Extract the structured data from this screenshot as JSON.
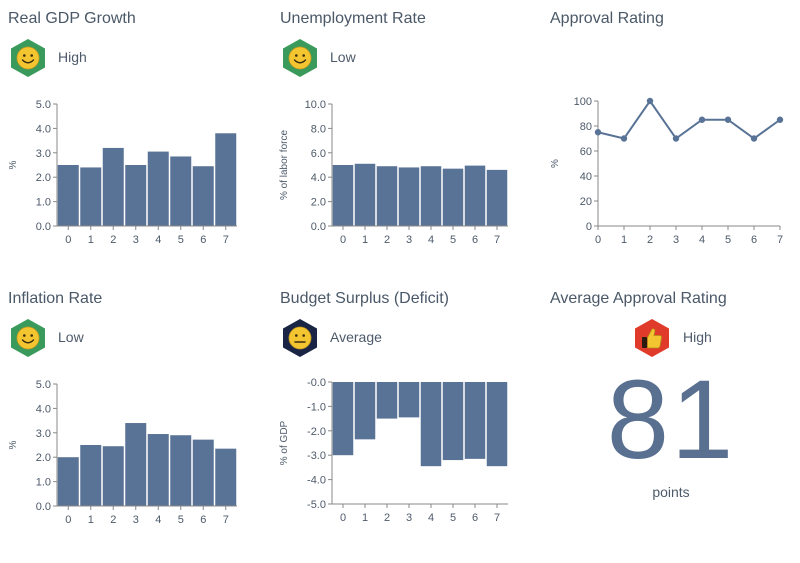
{
  "colors": {
    "bar": "#597396",
    "axis": "#888888",
    "text": "#4d5a6a",
    "green": "#3a9a5c",
    "navy": "#1a2546",
    "red": "#e03a2a",
    "face": "#f2c531"
  },
  "panels": [
    {
      "title": "Real GDP Growth",
      "badge": {
        "icon": "smiley-face-icon",
        "label": "High"
      }
    },
    {
      "title": "Unemployment Rate",
      "badge": {
        "icon": "smiley-face-icon",
        "label": "Low"
      }
    },
    {
      "title": "Approval Rating"
    },
    {
      "title": "Inflation Rate",
      "badge": {
        "icon": "smiley-face-icon",
        "label": "Low"
      }
    },
    {
      "title": "Budget Surplus (Deficit)",
      "badge": {
        "icon": "neutral-face-icon",
        "label": "Average"
      }
    },
    {
      "title": "Average Approval Rating",
      "badge": {
        "icon": "thumbs-up-icon",
        "label": "High"
      },
      "value": "81",
      "units": "points"
    }
  ],
  "chart_data": [
    {
      "type": "bar",
      "title": "Real GDP Growth",
      "ylabel": "%",
      "categories": [
        "0",
        "1",
        "2",
        "3",
        "4",
        "5",
        "6",
        "7"
      ],
      "values": [
        2.5,
        2.4,
        3.2,
        2.5,
        3.05,
        2.85,
        2.45,
        3.8
      ],
      "ylim": [
        0,
        5
      ],
      "yticks": [
        0,
        1,
        2,
        3,
        4,
        5
      ],
      "ytick_labels": [
        "0.0",
        "1.0",
        "2.0",
        "3.0",
        "4.0",
        "5.0"
      ]
    },
    {
      "type": "bar",
      "title": "Unemployment Rate",
      "ylabel": "% of labor force",
      "categories": [
        "0",
        "1",
        "2",
        "3",
        "4",
        "5",
        "6",
        "7"
      ],
      "values": [
        5.0,
        5.1,
        4.9,
        4.8,
        4.9,
        4.7,
        4.95,
        4.6
      ],
      "ylim": [
        0,
        10
      ],
      "yticks": [
        0,
        2,
        4,
        6,
        8,
        10
      ],
      "ytick_labels": [
        "0.0",
        "2.0",
        "4.0",
        "6.0",
        "8.0",
        "10.0"
      ]
    },
    {
      "type": "line",
      "title": "Approval Rating",
      "ylabel": "%",
      "x": [
        "0",
        "1",
        "2",
        "3",
        "4",
        "5",
        "6",
        "7"
      ],
      "values": [
        75,
        70,
        100,
        70,
        85,
        85,
        70,
        85
      ],
      "ylim": [
        0,
        100
      ],
      "yticks": [
        0,
        20,
        40,
        60,
        80,
        100
      ],
      "ytick_labels": [
        "0",
        "20",
        "40",
        "60",
        "80",
        "100"
      ]
    },
    {
      "type": "bar",
      "title": "Inflation Rate",
      "ylabel": "%",
      "categories": [
        "0",
        "1",
        "2",
        "3",
        "4",
        "5",
        "6",
        "7"
      ],
      "values": [
        2.0,
        2.5,
        2.45,
        3.4,
        2.95,
        2.9,
        2.72,
        2.35
      ],
      "ylim": [
        0,
        5
      ],
      "yticks": [
        0,
        1,
        2,
        3,
        4,
        5
      ],
      "ytick_labels": [
        "0.0",
        "1.0",
        "2.0",
        "3.0",
        "4.0",
        "5.0"
      ]
    },
    {
      "type": "bar",
      "title": "Budget Surplus (Deficit)",
      "ylabel": "% of GDP",
      "categories": [
        "0",
        "1",
        "2",
        "3",
        "4",
        "5",
        "6",
        "7"
      ],
      "values": [
        -3.0,
        -2.35,
        -1.5,
        -1.45,
        -3.45,
        -3.2,
        -3.15,
        -3.45
      ],
      "ylim": [
        -5,
        0
      ],
      "yticks": [
        0,
        -1,
        -2,
        -3,
        -4,
        -5
      ],
      "ytick_labels": [
        "-0.0",
        "-1.0",
        "-2.0",
        "-3.0",
        "-4.0",
        "-5.0"
      ]
    }
  ]
}
